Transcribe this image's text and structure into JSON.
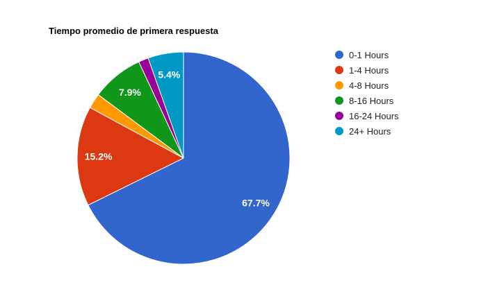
{
  "chart_data": {
    "type": "pie",
    "title": "Tiempo promedio de primera respuesta",
    "legend_position": "right",
    "values_are_percent": true,
    "start_angle": "12-oclock",
    "direction": "clockwise",
    "background_color": "#ffffff",
    "slices": [
      {
        "label": "0-1 Hours",
        "value": 67.7,
        "display_label": "67.7%",
        "color": "#3366CC",
        "label_visible": true,
        "estimated": false
      },
      {
        "label": "1-4 Hours",
        "value": 15.2,
        "display_label": "15.2%",
        "color": "#DC3912",
        "label_visible": true,
        "estimated": false
      },
      {
        "label": "4-8 Hours",
        "value": 2.3,
        "display_label": "",
        "color": "#FF9900",
        "label_visible": false,
        "estimated": true
      },
      {
        "label": "8-16 Hours",
        "value": 7.9,
        "display_label": "7.9%",
        "color": "#109618",
        "label_visible": true,
        "estimated": false
      },
      {
        "label": "16-24 Hours",
        "value": 1.5,
        "display_label": "",
        "color": "#990099",
        "label_visible": false,
        "estimated": true
      },
      {
        "label": "24+ Hours",
        "value": 5.4,
        "display_label": "5.4%",
        "color": "#0099C6",
        "label_visible": true,
        "estimated": false
      }
    ]
  }
}
